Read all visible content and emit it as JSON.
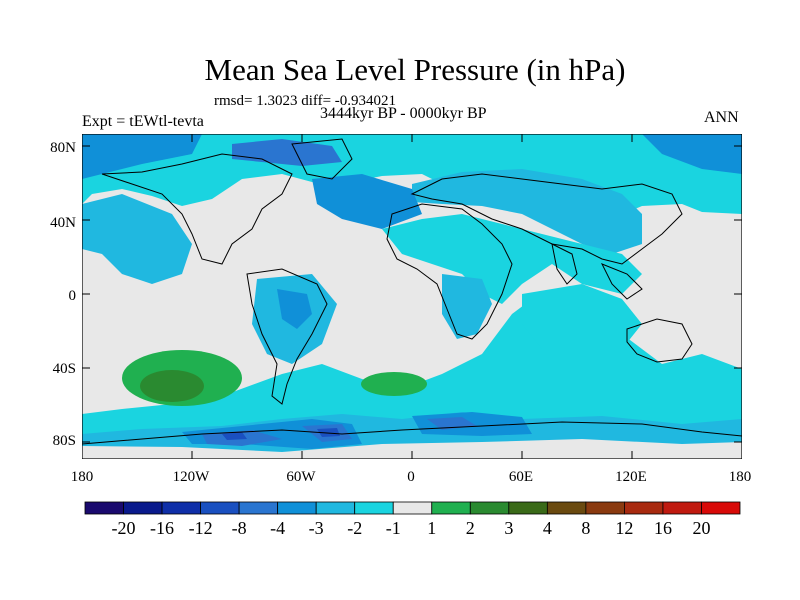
{
  "title": "Mean Sea Level Pressure (in hPa)",
  "stats_text": "rmsd= 1.3023 diff= -0.934021",
  "period": "3444kyr BP - 0000kyr BP",
  "experiment": "Expt = tEWtl-tevta",
  "season": "ANN",
  "lat_labels": [
    "80N",
    "40N",
    "0",
    "40S",
    "80S"
  ],
  "lon_labels": [
    "180",
    "120W",
    "60W",
    "0",
    "60E",
    "120E",
    "180"
  ],
  "colorbar": {
    "labels": [
      "-20",
      "-16",
      "-12",
      "-8",
      "-4",
      "-3",
      "-2",
      "-1",
      "1",
      "2",
      "3",
      "4",
      "8",
      "12",
      "16",
      "20"
    ],
    "colors": [
      "#1a0a6e",
      "#0a1a8c",
      "#0f2fa8",
      "#1a50c0",
      "#2a75d0",
      "#1090d8",
      "#20b8e0",
      "#1ad4e0",
      "#e8e8e8",
      "#20b050",
      "#2a8a30",
      "#3a6a18",
      "#6a4a10",
      "#8a3a10",
      "#a82a10",
      "#c01a10",
      "#d80a08"
    ]
  },
  "colors": {
    "neutral": "#e8e8e8",
    "cyan": "#1ad4e0",
    "light_blue": "#20b8e0",
    "mid_blue": "#1090d8",
    "blue": "#2a75d0",
    "dark_blue": "#1a50c0",
    "green": "#20b050",
    "dark_green": "#2a8a30"
  }
}
